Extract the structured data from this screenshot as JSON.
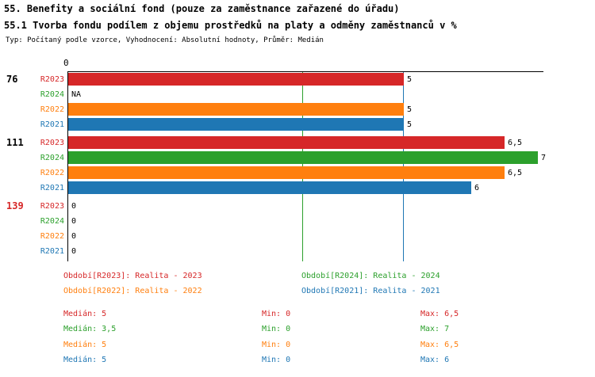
{
  "header": {
    "title": "55. Benefity a sociální fond (pouze za zaměstnance zařazené do úřadu)",
    "subtitle": "55.1 Tvorba fondu podílem z objemu prostředků na platy a odměny zaměstnanců v %",
    "meta": "Typ: Počítaný podle vzorce, Vyhodnocení: Absolutní hodnoty, Průměr: Medián"
  },
  "chart_data": {
    "type": "bar",
    "orientation": "horizontal",
    "x_axis": {
      "origin_label": "0",
      "min": 0,
      "max": 7.1,
      "gridlines": false
    },
    "series_order": [
      "R2023",
      "R2024",
      "R2022",
      "R2021"
    ],
    "series_colors": {
      "R2023": "#d62728",
      "R2024": "#2ca02c",
      "R2022": "#ff7f0e",
      "R2021": "#1f77b4"
    },
    "groups": [
      {
        "label": "76",
        "label_color": "#000000",
        "bars": [
          {
            "series": "R2023",
            "value": 5,
            "value_label": "5"
          },
          {
            "series": "R2024",
            "value": null,
            "value_label": "NA"
          },
          {
            "series": "R2022",
            "value": 5,
            "value_label": "5"
          },
          {
            "series": "R2021",
            "value": 5,
            "value_label": "5"
          }
        ]
      },
      {
        "label": "111",
        "label_color": "#000000",
        "bars": [
          {
            "series": "R2023",
            "value": 6.5,
            "value_label": "6,5"
          },
          {
            "series": "R2024",
            "value": 7,
            "value_label": "7"
          },
          {
            "series": "R2022",
            "value": 6.5,
            "value_label": "6,5"
          },
          {
            "series": "R2021",
            "value": 6,
            "value_label": "6"
          }
        ]
      },
      {
        "label": "139",
        "label_color": "#d62728",
        "bars": [
          {
            "series": "R2023",
            "value": 0,
            "value_label": "0"
          },
          {
            "series": "R2024",
            "value": 0,
            "value_label": "0"
          },
          {
            "series": "R2022",
            "value": 0,
            "value_label": "0"
          },
          {
            "series": "R2021",
            "value": 0,
            "value_label": "0"
          }
        ]
      }
    ],
    "reference_lines": [
      {
        "value": 3.5,
        "color": "#2ca02c"
      },
      {
        "value": 5,
        "color": "#1f77b4"
      }
    ],
    "legend": [
      {
        "label": "Období[R2023]: Realita - 2023",
        "color": "#d62728"
      },
      {
        "label": "Období[R2024]: Realita - 2024",
        "color": "#2ca02c"
      },
      {
        "label": "Období[R2022]: Realita - 2022",
        "color": "#ff7f0e"
      },
      {
        "label": "Období[R2021]: Realita - 2021",
        "color": "#1f77b4"
      }
    ],
    "stats": [
      {
        "series": "R2023",
        "color": "#d62728",
        "median": "Medián: 5",
        "min": "Min: 0",
        "max": "Max: 6,5"
      },
      {
        "series": "R2024",
        "color": "#2ca02c",
        "median": "Medián: 3,5",
        "min": "Min: 0",
        "max": "Max: 7"
      },
      {
        "series": "R2022",
        "color": "#ff7f0e",
        "median": "Medián: 5",
        "min": "Min: 0",
        "max": "Max: 6,5"
      },
      {
        "series": "R2021",
        "color": "#1f77b4",
        "median": "Medián: 5",
        "min": "Min: 0",
        "max": "Max: 6"
      }
    ]
  }
}
